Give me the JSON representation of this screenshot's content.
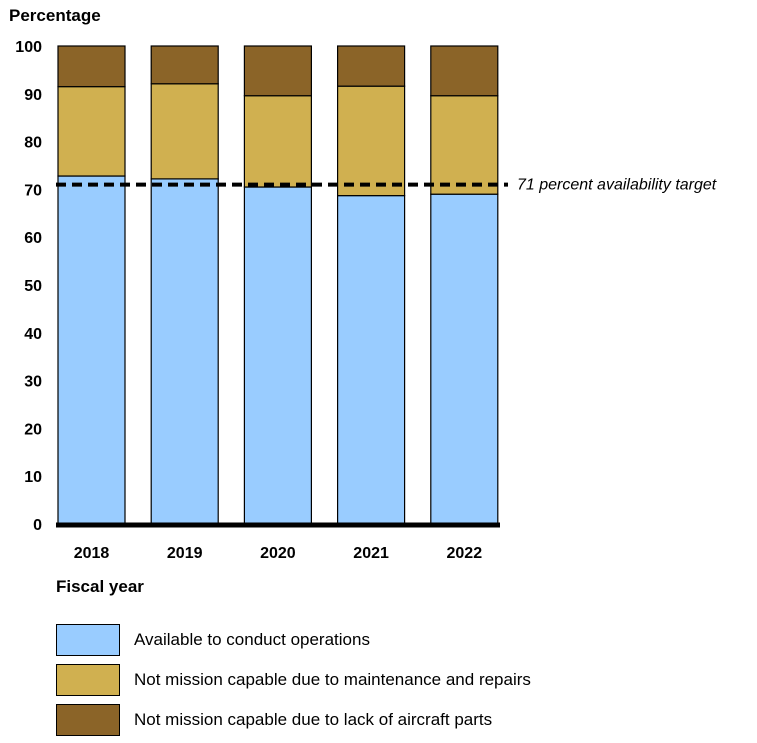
{
  "chart_data": {
    "type": "bar",
    "stacked": true,
    "categories": [
      "2018",
      "2019",
      "2020",
      "2021",
      "2022"
    ],
    "series": [
      {
        "name": "Available to conduct operations",
        "color": "#99ccff",
        "values": [
          72.8,
          72.2,
          70.5,
          68.7,
          69.0
        ]
      },
      {
        "name": "Not mission capable due to maintenance and repairs",
        "color": "#d0b050",
        "values": [
          18.7,
          19.9,
          19.1,
          22.9,
          20.6
        ]
      },
      {
        "name": "Not mission capable due to lack of aircraft parts",
        "color": "#8b6428",
        "values": [
          8.5,
          7.9,
          10.4,
          8.4,
          10.4
        ]
      }
    ],
    "ylabel": "Percentage",
    "xlabel": "Fiscal year",
    "ylim": [
      0,
      100
    ],
    "yticks": [
      0,
      10,
      20,
      30,
      40,
      50,
      60,
      70,
      80,
      90,
      100
    ],
    "grid": false,
    "legend_position": "bottom",
    "target": {
      "value": 71,
      "label": "71 percent availability target"
    }
  }
}
